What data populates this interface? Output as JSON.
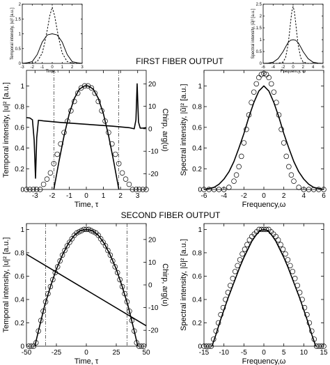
{
  "section_titles": {
    "first": "FIRST FIBER OUTPUT",
    "second": "SECOND FIBER OUTPUT"
  },
  "chart_data": [
    {
      "type": "line",
      "title": "",
      "xlabel": "Time, τ",
      "ylabel": "Temporal intensity, |u|² [a.u.]",
      "y2label": "Chirp, arg(u)",
      "xlim": [
        -3.5,
        3.5
      ],
      "ylim": [
        0,
        1.15
      ],
      "y2lim": [
        -27,
        26
      ],
      "xticks": [
        -3,
        -2,
        -1,
        0,
        1,
        2,
        3
      ],
      "yticks": [
        0,
        0.2,
        0.4,
        0.6,
        0.8,
        1
      ],
      "y2ticks": [
        -20,
        -10,
        0,
        10,
        20
      ],
      "vlines": [
        -1.9,
        1.9
      ],
      "series": [
        {
          "style": "solid",
          "x": [
            -1.9,
            -1.6,
            -1.3,
            -1.0,
            -0.7,
            -0.4,
            -0.1,
            0.1,
            0.4,
            0.7,
            1.0,
            1.3,
            1.6,
            1.9
          ],
          "y": [
            0.0,
            0.27,
            0.52,
            0.73,
            0.88,
            0.97,
            1.0,
            1.0,
            0.97,
            0.88,
            0.73,
            0.52,
            0.27,
            0.0
          ]
        },
        {
          "style": "circles",
          "x": [
            -3.5,
            -3.3,
            -3.1,
            -2.9,
            -2.7,
            -2.5,
            -2.3,
            -2.1,
            -1.9,
            -1.7,
            -1.5,
            -1.3,
            -1.1,
            -0.9,
            -0.7,
            -0.5,
            -0.3,
            -0.1,
            0.1,
            0.3,
            0.5,
            0.7,
            0.9,
            1.1,
            1.3,
            1.5,
            1.7,
            1.9,
            2.1,
            2.3,
            2.5,
            2.7,
            2.9,
            3.1,
            3.3,
            3.5
          ],
          "y": [
            0.0,
            0.0,
            0.0,
            0.0,
            0.0,
            0.05,
            0.1,
            0.16,
            0.25,
            0.34,
            0.44,
            0.55,
            0.66,
            0.76,
            0.85,
            0.93,
            0.98,
            1.0,
            1.0,
            0.98,
            0.93,
            0.85,
            0.76,
            0.66,
            0.55,
            0.44,
            0.34,
            0.25,
            0.16,
            0.1,
            0.05,
            0.0,
            0.0,
            0.0,
            0.0,
            0.0
          ]
        },
        {
          "style": "chirp",
          "axis": "right",
          "x": [
            -3.5,
            -3.3,
            -3.15,
            -3.05,
            -2.97,
            -2.9,
            -2.8,
            -2.5,
            -1.5,
            0.0,
            1.5,
            2.5,
            2.8,
            2.9,
            2.97,
            3.05,
            3.15,
            3.3,
            3.5
          ],
          "y": [
            5.0,
            4.8,
            4.0,
            -5.0,
            -22.0,
            -4.0,
            3.8,
            3.5,
            2.8,
            2.0,
            1.2,
            0.5,
            0.0,
            4.0,
            20.0,
            3.0,
            0.3,
            0.3,
            0.5
          ]
        }
      ]
    },
    {
      "type": "line",
      "title": "",
      "xlabel": "Frequency,ω",
      "ylabel": "Spectral intensity, |ũ|² [a.u.]",
      "xlim": [
        -6,
        6
      ],
      "ylim": [
        0,
        1.15
      ],
      "xticks": [
        -6,
        -4,
        -2,
        0,
        2,
        4,
        6
      ],
      "yticks": [
        0,
        0.2,
        0.4,
        0.6,
        0.8,
        1
      ],
      "series": [
        {
          "style": "solid",
          "x": [
            -6.0,
            -5.5,
            -5.0,
            -4.5,
            -4.0,
            -3.5,
            -3.0,
            -2.5,
            -2.0,
            -1.5,
            -1.0,
            -0.5,
            0.0,
            0.5,
            1.0,
            1.5,
            2.0,
            2.5,
            3.0,
            3.5,
            4.0,
            4.5,
            5.0,
            5.5,
            6.0
          ],
          "y": [
            0.0,
            0.01,
            0.02,
            0.05,
            0.1,
            0.17,
            0.27,
            0.4,
            0.54,
            0.7,
            0.84,
            0.95,
            1.0,
            0.95,
            0.84,
            0.7,
            0.54,
            0.4,
            0.27,
            0.17,
            0.1,
            0.05,
            0.02,
            0.01,
            0.0
          ]
        },
        {
          "style": "circles",
          "x": [
            -6.0,
            -5.5,
            -5.0,
            -4.5,
            -4.0,
            -3.5,
            -3.0,
            -2.75,
            -2.5,
            -2.25,
            -2.0,
            -1.75,
            -1.5,
            -1.25,
            -1.0,
            -0.75,
            -0.5,
            -0.25,
            0.0,
            0.25,
            0.5,
            0.75,
            1.0,
            1.25,
            1.5,
            1.75,
            2.0,
            2.25,
            2.5,
            2.75,
            3.0,
            3.5,
            4.0,
            4.5,
            5.0,
            5.5,
            6.0
          ],
          "y": [
            0.0,
            0.0,
            0.0,
            0.0,
            0.0,
            0.02,
            0.08,
            0.14,
            0.22,
            0.32,
            0.45,
            0.58,
            0.72,
            0.84,
            0.94,
            1.02,
            1.08,
            1.11,
            1.12,
            1.11,
            1.08,
            1.02,
            0.94,
            0.84,
            0.72,
            0.58,
            0.45,
            0.32,
            0.22,
            0.14,
            0.08,
            0.02,
            0.0,
            0.0,
            0.0,
            0.0,
            0.0
          ]
        }
      ]
    },
    {
      "type": "line",
      "title": "",
      "xlabel": "Time, τ",
      "ylabel": "Temporal intensity, |u|² [a.u.]",
      "y2label": "Chirp, arg(u)",
      "xlim": [
        -50,
        50
      ],
      "ylim": [
        0,
        1.05
      ],
      "y2lim": [
        -27,
        27
      ],
      "xticks": [
        -50,
        -25,
        0,
        25,
        50
      ],
      "yticks": [
        0,
        0.2,
        0.4,
        0.6,
        0.8,
        1
      ],
      "y2ticks": [
        -20,
        -10,
        0,
        10,
        20
      ],
      "vlines": [
        -34,
        34
      ],
      "series": [
        {
          "style": "solid",
          "x": [
            -43,
            -40,
            -35,
            -30,
            -25,
            -20,
            -15,
            -10,
            -5,
            0,
            5,
            10,
            15,
            20,
            25,
            30,
            35,
            40,
            43
          ],
          "y": [
            0.0,
            0.13,
            0.34,
            0.51,
            0.66,
            0.78,
            0.88,
            0.95,
            0.99,
            1.0,
            0.99,
            0.95,
            0.88,
            0.78,
            0.66,
            0.51,
            0.34,
            0.13,
            0.0
          ]
        },
        {
          "style": "circles",
          "x": [
            -48,
            -46,
            -44,
            -42,
            -40,
            -38,
            -36,
            -34,
            -32,
            -30,
            -28,
            -26,
            -24,
            -22,
            -20,
            -18,
            -16,
            -14,
            -12,
            -10,
            -8,
            -6,
            -4,
            -2,
            0,
            2,
            4,
            6,
            8,
            10,
            12,
            14,
            16,
            18,
            20,
            22,
            24,
            26,
            28,
            30,
            32,
            34,
            36,
            38,
            40,
            42,
            44,
            46,
            48
          ],
          "y": [
            0.0,
            0.0,
            0.0,
            0.03,
            0.13,
            0.22,
            0.3,
            0.38,
            0.45,
            0.51,
            0.57,
            0.63,
            0.68,
            0.73,
            0.78,
            0.82,
            0.86,
            0.89,
            0.92,
            0.95,
            0.97,
            0.98,
            0.99,
            1.0,
            1.0,
            1.0,
            0.99,
            0.98,
            0.97,
            0.95,
            0.92,
            0.89,
            0.86,
            0.82,
            0.78,
            0.73,
            0.68,
            0.63,
            0.57,
            0.51,
            0.45,
            0.38,
            0.3,
            0.22,
            0.13,
            0.03,
            0.0,
            0.0,
            0.0
          ]
        },
        {
          "style": "chirp",
          "axis": "right",
          "x": [
            -50,
            50
          ],
          "y": [
            13.5,
            -18.0
          ]
        }
      ]
    },
    {
      "type": "line",
      "title": "",
      "xlabel": "Frequency,ω",
      "ylabel": "Spectral intensity, |ũ|² [a.u.]",
      "xlim": [
        -15,
        15
      ],
      "ylim": [
        0,
        1.05
      ],
      "xticks": [
        -15,
        -10,
        -5,
        0,
        5,
        10,
        15
      ],
      "yticks": [
        0,
        0.2,
        0.4,
        0.6,
        0.8,
        1
      ],
      "series": [
        {
          "style": "solid",
          "x": [
            -13,
            -12,
            -11,
            -10,
            -9,
            -8,
            -7,
            -6,
            -5,
            -4,
            -3,
            -2,
            -1,
            0,
            1,
            2,
            3,
            4,
            5,
            6,
            7,
            8,
            9,
            10,
            11,
            12,
            13
          ],
          "y": [
            0.0,
            0.1,
            0.21,
            0.31,
            0.41,
            0.5,
            0.59,
            0.68,
            0.76,
            0.83,
            0.9,
            0.95,
            0.99,
            1.0,
            0.99,
            0.95,
            0.9,
            0.83,
            0.76,
            0.68,
            0.59,
            0.5,
            0.41,
            0.31,
            0.21,
            0.1,
            0.0
          ]
        },
        {
          "style": "circles",
          "x": [
            -15.0,
            -14.4,
            -13.8,
            -13.2,
            -12.6,
            -12.0,
            -11.4,
            -10.8,
            -10.2,
            -9.6,
            -9.0,
            -8.4,
            -7.8,
            -7.2,
            -6.6,
            -6.0,
            -5.4,
            -4.8,
            -4.2,
            -3.6,
            -3.0,
            -2.4,
            -1.8,
            -1.2,
            -0.6,
            0.0,
            0.6,
            1.2,
            1.8,
            2.4,
            3.0,
            3.6,
            4.2,
            4.8,
            5.4,
            6.0,
            6.6,
            7.2,
            7.8,
            8.4,
            9.0,
            9.6,
            10.2,
            10.8,
            11.4,
            12.0,
            12.6,
            13.2,
            13.8,
            14.4,
            15.0
          ],
          "y": [
            0.0,
            0.0,
            0.0,
            0.0,
            0.06,
            0.13,
            0.2,
            0.27,
            0.33,
            0.4,
            0.46,
            0.52,
            0.58,
            0.64,
            0.69,
            0.74,
            0.79,
            0.83,
            0.87,
            0.91,
            0.94,
            0.96,
            0.98,
            1.0,
            1.0,
            1.0,
            1.0,
            1.0,
            0.98,
            0.96,
            0.94,
            0.91,
            0.87,
            0.83,
            0.79,
            0.74,
            0.69,
            0.64,
            0.58,
            0.52,
            0.46,
            0.4,
            0.33,
            0.27,
            0.2,
            0.13,
            0.06,
            0.0,
            0.0,
            0.0,
            0.0
          ]
        }
      ]
    },
    {
      "type": "line",
      "title": "",
      "xlabel": "Time, τ",
      "ylabel": "Temporal intensity, |u|² [a.u.]",
      "xlim": [
        -3,
        3
      ],
      "ylim": [
        0,
        2
      ],
      "xticks": [
        -3,
        -2,
        -1,
        0,
        1,
        2,
        3
      ],
      "yticks": [
        0,
        0.5,
        1,
        1.5,
        2
      ],
      "series": [
        {
          "style": "solid",
          "x": [
            -3.0,
            -2.5,
            -2.0,
            -1.5,
            -1.0,
            -0.5,
            0.0,
            0.5,
            1.0,
            1.5,
            2.0,
            2.5,
            3.0
          ],
          "y": [
            0.0,
            0.02,
            0.06,
            0.3,
            0.72,
            0.96,
            1.0,
            0.96,
            0.72,
            0.3,
            0.06,
            0.02,
            0.0
          ]
        },
        {
          "style": "dashed",
          "x": [
            -3.0,
            -2.0,
            -1.5,
            -1.0,
            -0.75,
            -0.5,
            -0.25,
            0.0,
            0.25,
            0.5,
            0.75,
            1.0,
            1.5,
            2.0,
            3.0
          ],
          "y": [
            0.0,
            0.01,
            0.06,
            0.35,
            0.7,
            1.12,
            1.6,
            1.9,
            1.6,
            1.12,
            0.7,
            0.35,
            0.06,
            0.01,
            0.0
          ]
        }
      ]
    },
    {
      "type": "line",
      "title": "",
      "xlabel": "Frequency, ω",
      "ylabel": "Spectral intensity, |ũ|² [a.u.]",
      "xlim": [
        -6,
        6
      ],
      "ylim": [
        0,
        2.5
      ],
      "xticks": [
        -6,
        -4,
        -2,
        0,
        2,
        4,
        6
      ],
      "yticks": [
        0,
        0.5,
        1,
        1.5,
        2,
        2.5
      ],
      "series": [
        {
          "style": "solid",
          "x": [
            -6.0,
            -5.0,
            -4.0,
            -3.0,
            -2.0,
            -1.5,
            -1.0,
            -0.5,
            0.0,
            0.5,
            1.0,
            1.5,
            2.0,
            3.0,
            4.0,
            5.0,
            6.0
          ],
          "y": [
            0.0,
            0.01,
            0.05,
            0.2,
            0.5,
            0.7,
            0.88,
            0.98,
            1.0,
            0.98,
            0.88,
            0.7,
            0.5,
            0.2,
            0.05,
            0.01,
            0.0
          ]
        },
        {
          "style": "dashed",
          "x": [
            -6.0,
            -3.0,
            -2.0,
            -1.5,
            -1.0,
            -0.75,
            -0.5,
            -0.25,
            0.0,
            0.25,
            0.5,
            0.75,
            1.0,
            1.5,
            2.0,
            3.0,
            6.0
          ],
          "y": [
            0.0,
            0.0,
            0.06,
            0.25,
            0.8,
            1.25,
            1.75,
            2.2,
            2.4,
            2.2,
            1.75,
            1.25,
            0.8,
            0.25,
            0.06,
            0.0,
            0.0
          ]
        }
      ]
    }
  ]
}
